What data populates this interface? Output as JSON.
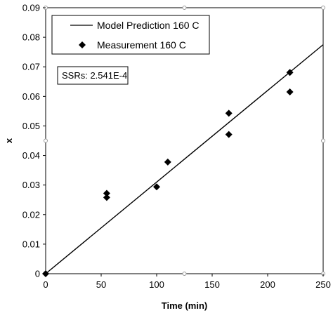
{
  "chart_data": {
    "type": "scatter",
    "xlabel": "Time (min)",
    "ylabel": "x",
    "xlim": [
      0,
      250
    ],
    "ylim": [
      0,
      0.09
    ],
    "x_ticks": [
      "0",
      "50",
      "100",
      "150",
      "200",
      "250"
    ],
    "y_ticks": [
      "0",
      "0.01",
      "0.02",
      "0.03",
      "0.04",
      "0.05",
      "0.06",
      "0.07",
      "0.08",
      "0.09"
    ],
    "x_tick_values": [
      0,
      50,
      100,
      150,
      200,
      250
    ],
    "y_tick_values": [
      0,
      0.01,
      0.02,
      0.03,
      0.04,
      0.05,
      0.06,
      0.07,
      0.08,
      0.09
    ],
    "grid": false,
    "legend_position": "top-left",
    "series": [
      {
        "name": "Model Prediction 160 C",
        "kind": "line",
        "color": "#000000",
        "points": [
          [
            0,
            0
          ],
          [
            250,
            0.0775
          ]
        ]
      },
      {
        "name": "Measurement 160 C",
        "kind": "scatter",
        "marker": "diamond",
        "color": "#000000",
        "points": [
          [
            0,
            0
          ],
          [
            55,
            0.0272
          ],
          [
            55,
            0.0258
          ],
          [
            100,
            0.0294
          ],
          [
            110,
            0.0378
          ],
          [
            165,
            0.0543
          ],
          [
            165,
            0.0471
          ],
          [
            220,
            0.0681
          ],
          [
            220,
            0.0615
          ]
        ]
      }
    ],
    "annotation": "SSRs: 2.541E-4"
  }
}
